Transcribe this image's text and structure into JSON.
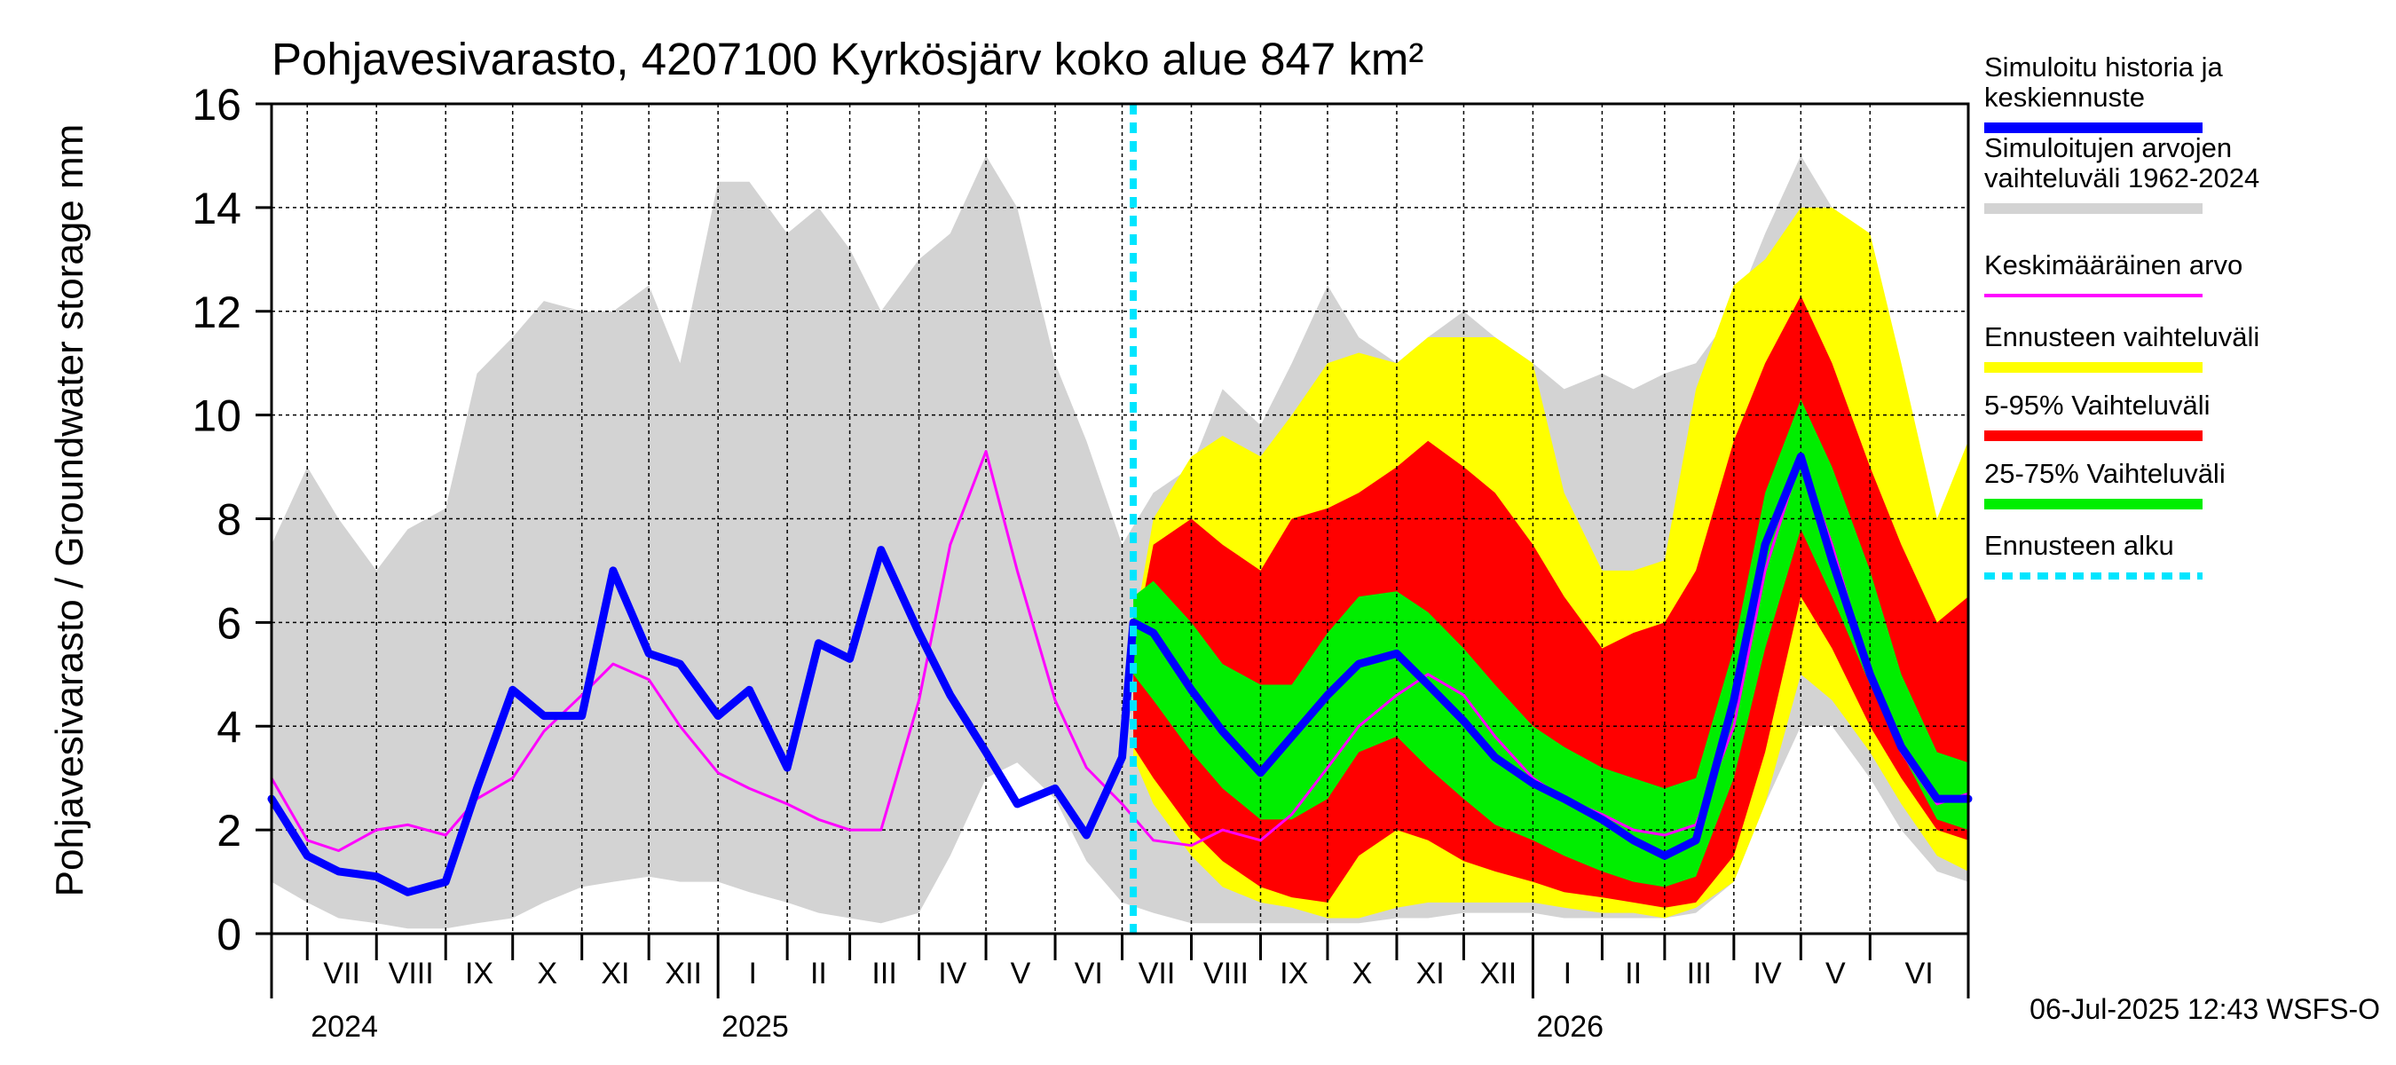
{
  "chart_data": {
    "type": "area",
    "title": "Pohjavesivarasto, 4207100 Kyrkösjärv koko alue 847 km²",
    "ylabel": "Pohjavesivarasto / Groundwater storage   mm",
    "ylim": [
      0,
      16
    ],
    "yticks": [
      0,
      2,
      4,
      6,
      8,
      10,
      12,
      14,
      16
    ],
    "xlim": [
      "2024-06-15",
      "2026-07-15"
    ],
    "grid": true,
    "legend_position": "right",
    "forecast_start": "2025-07-06",
    "footer": "06-Jul-2025 12:43 WSFS-O",
    "months": [
      {
        "label": "VII",
        "start": "2024-07-01"
      },
      {
        "label": "VIII",
        "start": "2024-08-01"
      },
      {
        "label": "IX",
        "start": "2024-09-01"
      },
      {
        "label": "X",
        "start": "2024-10-01"
      },
      {
        "label": "XI",
        "start": "2024-11-01"
      },
      {
        "label": "XII",
        "start": "2024-12-01"
      },
      {
        "label": "I",
        "start": "2025-01-01"
      },
      {
        "label": "II",
        "start": "2025-02-01"
      },
      {
        "label": "III",
        "start": "2025-03-01"
      },
      {
        "label": "IV",
        "start": "2025-04-01"
      },
      {
        "label": "V",
        "start": "2025-05-01"
      },
      {
        "label": "VI",
        "start": "2025-06-01"
      },
      {
        "label": "VII",
        "start": "2025-07-01"
      },
      {
        "label": "VIII",
        "start": "2025-08-01"
      },
      {
        "label": "IX",
        "start": "2025-09-01"
      },
      {
        "label": "X",
        "start": "2025-10-01"
      },
      {
        "label": "XI",
        "start": "2025-11-01"
      },
      {
        "label": "XII",
        "start": "2025-12-01"
      },
      {
        "label": "I",
        "start": "2026-01-01"
      },
      {
        "label": "II",
        "start": "2026-02-01"
      },
      {
        "label": "III",
        "start": "2026-03-01"
      },
      {
        "label": "IV",
        "start": "2026-04-01"
      },
      {
        "label": "V",
        "start": "2026-05-01"
      },
      {
        "label": "VI",
        "start": "2026-06-01"
      }
    ],
    "years": [
      {
        "label": "2024",
        "date": "2024-07-01"
      },
      {
        "label": "2025",
        "date": "2025-01-01"
      },
      {
        "label": "2026",
        "date": "2026-01-01"
      }
    ],
    "legend": [
      {
        "label": "Simuloitu historia ja\nkeskiennuste",
        "color": "#0000ff",
        "style": "thick"
      },
      {
        "label": "Simuloitujen arvojen\nvaihteluväli 1962-2024",
        "color": "#d3d3d3",
        "style": "band"
      },
      {
        "label": "Keskimääräinen arvo",
        "color": "#ff00ff",
        "style": "thin"
      },
      {
        "label": "Ennusteen vaihteluväli",
        "color": "#ffff00",
        "style": "band"
      },
      {
        "label": "5-95% Vaihteluväli",
        "color": "#ff0000",
        "style": "band"
      },
      {
        "label": "25-75% Vaihteluväli",
        "color": "#00ee00",
        "style": "band"
      },
      {
        "label": "Ennusteen alku",
        "color": "#00e5ff",
        "style": "dashed"
      }
    ],
    "series": [
      {
        "key": "hist_range",
        "color": "#d3d3d3",
        "x": [
          "2024-06-15",
          "2024-07-01",
          "2024-07-15",
          "2024-08-01",
          "2024-08-15",
          "2024-09-01",
          "2024-09-15",
          "2024-10-01",
          "2024-10-15",
          "2024-11-01",
          "2024-11-15",
          "2024-12-01",
          "2024-12-15",
          "2025-01-01",
          "2025-01-15",
          "2025-02-01",
          "2025-02-15",
          "2025-03-01",
          "2025-03-15",
          "2025-04-01",
          "2025-04-15",
          "2025-05-01",
          "2025-05-15",
          "2025-06-01",
          "2025-06-15",
          "2025-07-01",
          "2025-07-15",
          "2025-08-01",
          "2025-08-15",
          "2025-09-01",
          "2025-09-15",
          "2025-10-01",
          "2025-10-15",
          "2025-11-01",
          "2025-11-15",
          "2025-12-01",
          "2025-12-15",
          "2026-01-01",
          "2026-01-15",
          "2026-02-01",
          "2026-02-15",
          "2026-03-01",
          "2026-03-15",
          "2026-04-01",
          "2026-04-15",
          "2026-05-01",
          "2026-05-15",
          "2026-06-01",
          "2026-06-15",
          "2026-07-01",
          "2026-07-15"
        ],
        "low": [
          1.0,
          0.6,
          0.3,
          0.2,
          0.1,
          0.1,
          0.2,
          0.3,
          0.6,
          0.9,
          1.0,
          1.1,
          1.0,
          1.0,
          0.8,
          0.6,
          0.4,
          0.3,
          0.2,
          0.4,
          1.5,
          3.0,
          3.3,
          2.6,
          1.4,
          0.6,
          0.4,
          0.2,
          0.2,
          0.2,
          0.2,
          0.2,
          0.2,
          0.3,
          0.3,
          0.4,
          0.4,
          0.4,
          0.3,
          0.3,
          0.3,
          0.3,
          0.4,
          1.0,
          2.5,
          4.0,
          4.0,
          3.0,
          2.0,
          1.2,
          1.0
        ],
        "high": [
          7.5,
          9.0,
          8.0,
          7.0,
          7.8,
          8.2,
          10.8,
          11.5,
          12.2,
          12.0,
          12.0,
          12.5,
          11.0,
          14.5,
          14.5,
          13.5,
          14.0,
          13.2,
          12.0,
          13.0,
          13.5,
          15.0,
          14.0,
          11.0,
          9.5,
          7.5,
          8.5,
          9.0,
          10.5,
          9.8,
          11.0,
          12.5,
          11.5,
          11.0,
          11.5,
          12.0,
          11.5,
          11.0,
          10.5,
          10.8,
          10.5,
          10.8,
          11.0,
          12.0,
          13.5,
          15.0,
          14.0,
          12.5,
          10.0,
          8.0,
          8.5
        ]
      },
      {
        "key": "forecast_range",
        "color": "#ffff00",
        "x": [
          "2025-07-06",
          "2025-07-15",
          "2025-08-01",
          "2025-08-15",
          "2025-09-01",
          "2025-09-15",
          "2025-10-01",
          "2025-10-15",
          "2025-11-01",
          "2025-11-15",
          "2025-12-01",
          "2025-12-15",
          "2026-01-01",
          "2026-01-15",
          "2026-02-01",
          "2026-02-15",
          "2026-03-01",
          "2026-03-15",
          "2026-04-01",
          "2026-04-15",
          "2026-05-01",
          "2026-05-15",
          "2026-06-01",
          "2026-06-15",
          "2026-07-01",
          "2026-07-15"
        ],
        "low": [
          3.4,
          2.5,
          1.5,
          0.9,
          0.6,
          0.5,
          0.3,
          0.3,
          0.5,
          0.6,
          0.6,
          0.6,
          0.6,
          0.5,
          0.4,
          0.4,
          0.3,
          0.5,
          1.0,
          2.5,
          5.0,
          4.5,
          3.5,
          2.5,
          1.5,
          1.2
        ],
        "high": [
          5.8,
          8.0,
          9.2,
          9.6,
          9.2,
          10.0,
          11.0,
          11.2,
          11.0,
          11.5,
          11.5,
          11.5,
          11.0,
          8.5,
          7.0,
          7.0,
          7.2,
          10.5,
          12.5,
          13.0,
          14.0,
          14.0,
          13.5,
          11.0,
          8.0,
          9.5
        ]
      },
      {
        "key": "p5_95",
        "color": "#ff0000",
        "x": [
          "2025-07-06",
          "2025-07-15",
          "2025-08-01",
          "2025-08-15",
          "2025-09-01",
          "2025-09-15",
          "2025-10-01",
          "2025-10-15",
          "2025-11-01",
          "2025-11-15",
          "2025-12-01",
          "2025-12-15",
          "2026-01-01",
          "2026-01-15",
          "2026-02-01",
          "2026-02-15",
          "2026-03-01",
          "2026-03-15",
          "2026-04-01",
          "2026-04-15",
          "2026-05-01",
          "2026-05-15",
          "2026-06-01",
          "2026-06-15",
          "2026-07-01",
          "2026-07-15"
        ],
        "low": [
          3.6,
          3.0,
          2.0,
          1.4,
          0.9,
          0.7,
          0.6,
          1.5,
          2.0,
          1.8,
          1.4,
          1.2,
          1.0,
          0.8,
          0.7,
          0.6,
          0.5,
          0.6,
          1.5,
          3.5,
          6.5,
          5.5,
          4.0,
          3.0,
          2.0,
          1.8
        ],
        "high": [
          5.5,
          7.5,
          8.0,
          7.5,
          7.0,
          8.0,
          8.2,
          8.5,
          9.0,
          9.5,
          9.0,
          8.5,
          7.5,
          6.5,
          5.5,
          5.8,
          6.0,
          7.0,
          9.5,
          11.0,
          12.3,
          11.0,
          9.0,
          7.5,
          6.0,
          6.5
        ]
      },
      {
        "key": "p25_75",
        "color": "#00ee00",
        "x": [
          "2025-07-06",
          "2025-07-15",
          "2025-08-01",
          "2025-08-15",
          "2025-09-01",
          "2025-09-15",
          "2025-10-01",
          "2025-10-15",
          "2025-11-01",
          "2025-11-15",
          "2025-12-01",
          "2025-12-15",
          "2026-01-01",
          "2026-01-15",
          "2026-02-01",
          "2026-02-15",
          "2026-03-01",
          "2026-03-15",
          "2026-04-01",
          "2026-04-15",
          "2026-05-01",
          "2026-05-15",
          "2026-06-01",
          "2026-06-15",
          "2026-07-01",
          "2026-07-15"
        ],
        "low": [
          5.0,
          4.5,
          3.5,
          2.8,
          2.2,
          2.2,
          2.6,
          3.5,
          3.8,
          3.2,
          2.6,
          2.1,
          1.8,
          1.5,
          1.2,
          1.0,
          0.9,
          1.1,
          3.0,
          5.5,
          7.8,
          6.5,
          4.8,
          3.5,
          2.2,
          2.0
        ],
        "high": [
          6.5,
          6.8,
          6.0,
          5.2,
          4.8,
          4.8,
          5.8,
          6.5,
          6.6,
          6.2,
          5.5,
          4.8,
          4.0,
          3.6,
          3.2,
          3.0,
          2.8,
          3.0,
          5.5,
          8.5,
          10.3,
          9.0,
          7.0,
          5.0,
          3.5,
          3.3
        ]
      },
      {
        "key": "mean",
        "color": "#ff00ff",
        "width": 3,
        "x": [
          "2024-06-15",
          "2024-07-01",
          "2024-07-15",
          "2024-08-01",
          "2024-08-15",
          "2024-09-01",
          "2024-09-15",
          "2024-10-01",
          "2024-10-15",
          "2024-11-01",
          "2024-11-15",
          "2024-12-01",
          "2024-12-15",
          "2025-01-01",
          "2025-01-15",
          "2025-02-01",
          "2025-02-15",
          "2025-03-01",
          "2025-03-15",
          "2025-04-01",
          "2025-04-15",
          "2025-05-01",
          "2025-05-15",
          "2025-06-01",
          "2025-06-15",
          "2025-07-01",
          "2025-07-15",
          "2025-08-01",
          "2025-08-15",
          "2025-09-01",
          "2025-09-15",
          "2025-10-01",
          "2025-10-15",
          "2025-11-01",
          "2025-11-15",
          "2025-12-01",
          "2025-12-15",
          "2026-01-01",
          "2026-01-15",
          "2026-02-01",
          "2026-02-15",
          "2026-03-01",
          "2026-03-15",
          "2026-04-01",
          "2026-04-15",
          "2026-05-01",
          "2026-05-15",
          "2026-06-01",
          "2026-06-15",
          "2026-07-01",
          "2026-07-15"
        ],
        "y": [
          3.0,
          1.8,
          1.6,
          2.0,
          2.1,
          1.9,
          2.6,
          3.0,
          3.9,
          4.6,
          5.2,
          4.9,
          4.0,
          3.1,
          2.8,
          2.5,
          2.2,
          2.0,
          2.0,
          4.5,
          7.5,
          9.3,
          7.0,
          4.5,
          3.2,
          2.5,
          1.8,
          1.7,
          2.0,
          1.8,
          2.3,
          3.2,
          4.0,
          4.6,
          5.0,
          4.6,
          3.8,
          3.0,
          2.6,
          2.3,
          2.0,
          1.9,
          2.1,
          4.0,
          7.0,
          9.2,
          7.5,
          5.0,
          3.5,
          2.5,
          2.7
        ]
      },
      {
        "key": "history_median",
        "color": "#0000ff",
        "width": 9,
        "x": [
          "2024-06-15",
          "2024-07-01",
          "2024-07-15",
          "2024-08-01",
          "2024-08-15",
          "2024-09-01",
          "2024-09-15",
          "2024-10-01",
          "2024-10-15",
          "2024-11-01",
          "2024-11-15",
          "2024-12-01",
          "2024-12-15",
          "2025-01-01",
          "2025-01-15",
          "2025-02-01",
          "2025-02-15",
          "2025-03-01",
          "2025-03-15",
          "2025-04-01",
          "2025-04-15",
          "2025-05-01",
          "2025-05-15",
          "2025-06-01",
          "2025-06-15",
          "2025-07-01",
          "2025-07-06",
          "2025-07-15",
          "2025-08-01",
          "2025-08-15",
          "2025-09-01",
          "2025-09-15",
          "2025-10-01",
          "2025-10-15",
          "2025-11-01",
          "2025-11-15",
          "2025-12-01",
          "2025-12-15",
          "2026-01-01",
          "2026-01-15",
          "2026-02-01",
          "2026-02-15",
          "2026-03-01",
          "2026-03-15",
          "2026-04-01",
          "2026-04-15",
          "2026-05-01",
          "2026-05-15",
          "2026-06-01",
          "2026-06-15",
          "2026-07-01",
          "2026-07-15"
        ],
        "y": [
          2.6,
          1.5,
          1.2,
          1.1,
          0.8,
          1.0,
          2.8,
          4.7,
          4.2,
          4.2,
          7.0,
          5.4,
          5.2,
          4.2,
          4.7,
          3.2,
          5.6,
          5.3,
          7.4,
          5.8,
          4.6,
          3.5,
          2.5,
          2.8,
          1.9,
          3.4,
          6.0,
          5.8,
          4.7,
          3.9,
          3.1,
          3.8,
          4.6,
          5.2,
          5.4,
          4.8,
          4.1,
          3.4,
          2.9,
          2.6,
          2.2,
          1.8,
          1.5,
          1.8,
          4.5,
          7.5,
          9.2,
          7.2,
          5.0,
          3.6,
          2.6,
          2.6
        ]
      }
    ]
  }
}
